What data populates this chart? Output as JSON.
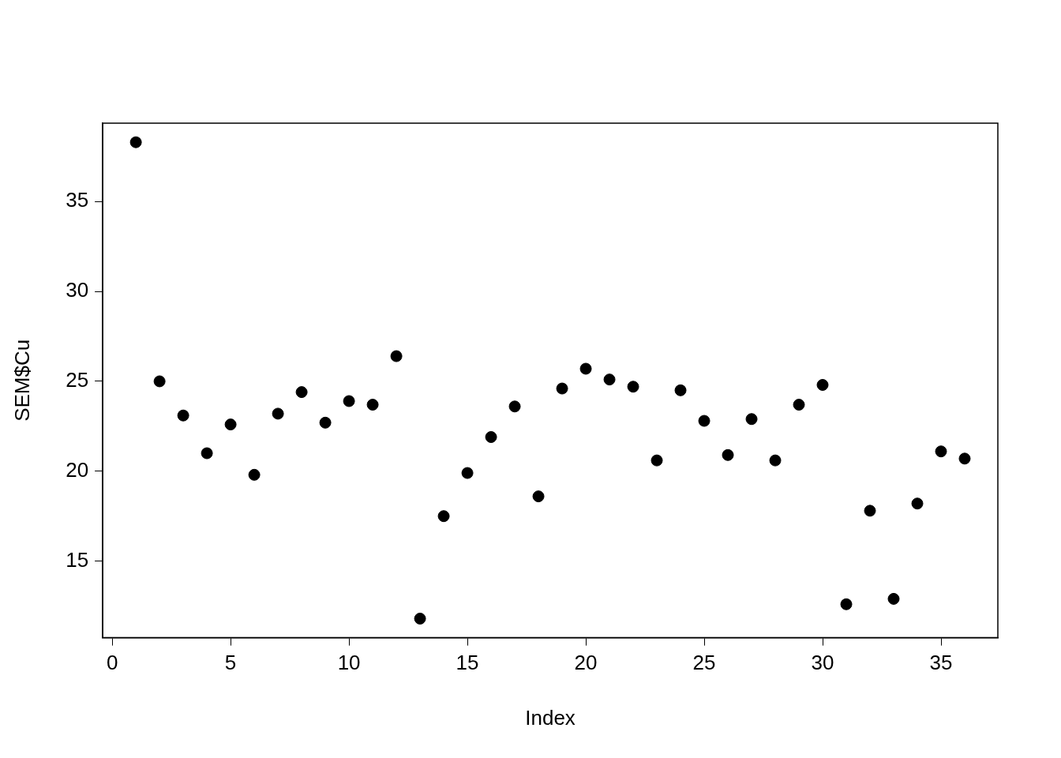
{
  "chart_data": {
    "type": "scatter",
    "xlabel": "Index",
    "ylabel": "SEM$Cu",
    "x": [
      1,
      2,
      3,
      4,
      5,
      6,
      7,
      8,
      9,
      10,
      11,
      12,
      13,
      14,
      15,
      16,
      17,
      18,
      19,
      20,
      21,
      22,
      23,
      24,
      25,
      26,
      27,
      28,
      29,
      30,
      31,
      32,
      33,
      34,
      35,
      36
    ],
    "series": [
      {
        "color": "#000000",
        "values": [
          38.3,
          25.0,
          23.1,
          21.0,
          22.6,
          19.8,
          23.2,
          24.4,
          22.7,
          23.9,
          23.7,
          26.4,
          11.8,
          17.5,
          19.9,
          21.9,
          23.6,
          18.6,
          24.6,
          25.7,
          25.1,
          24.7,
          20.6,
          24.5,
          22.8,
          20.9,
          22.9,
          20.6,
          23.7,
          24.8,
          12.6,
          17.8,
          12.9,
          18.2,
          21.1,
          20.7
        ]
      }
    ],
    "xlim": [
      -0.4,
      37.4
    ],
    "ylim": [
      10.74,
      39.36
    ],
    "xticks": [
      0,
      5,
      10,
      15,
      20,
      25,
      30,
      35
    ],
    "yticks": [
      15,
      20,
      25,
      30,
      35
    ],
    "grid": false,
    "legend": false,
    "marker": "circle"
  }
}
